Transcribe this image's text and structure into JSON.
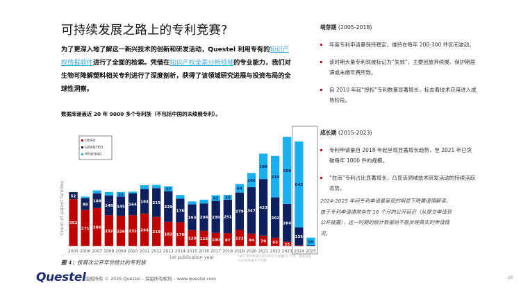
{
  "page": {
    "title": "可持续发展之路上的专利竞赛?",
    "intro": {
      "part1": "为了更深入地了解这一新兴技术的创新和研发活动，Questel 利用专有的",
      "link1": "知识产权情报软件",
      "part2": "进行了全面的检索。凭借在",
      "link2": "知识产权全景分析领域",
      "part3": "的专业能力，我们对生物可降解塑料相关专利进行了深度剖析，获得了该领域研究进展与投资布局的全球性洞察。"
    },
    "chart_caption": "数据库涵盖近 20 年 9000 多个专利族（不包括中国的未续展专利）。",
    "figure_caption": {
      "label": "图 4：",
      "text": "按首次公开年份统计的专利族"
    },
    "footnote": "*由于专利申请从提交到公开需要18 个月，因此这些年份的数据并不完整",
    "right_column": {
      "phase1": {
        "title": "萌芽期",
        "range": "(2005-2018)",
        "bullets": [
          "年度专利申请量保持稳定，维持在每年 200-300 件区间波动。",
          "该时期大量专利现被标记为“失效”，主要因放弃续展、保护期届满或未缴年费所致。",
          "自 2010 年起“授权”专利数量显著增长，标志着技术应用进入成熟阶段。"
        ]
      },
      "phase2": {
        "title": "成长期",
        "range": "(2015-2023)",
        "bullets": [
          "专利申请量自 2018 年起呈现显著增长趋势，至 2021 年已突破每年 1000 件的规模。",
          "“在审”专利占比显著增长，凸显该领域技术研发活动的持续活跃态势。"
        ]
      },
      "note": "2024-2025 年间专利申请量呈现的明显下降需谨慎解读。由于专利申请通常存在 18 个月的公开延迟（从提交申请到公开披露），这一时期的统计数据尚不能反映真实的申请情况。"
    },
    "footer": {
      "logo": "Questel",
      "copyright": "版权所有 © 2025 Questel – 保留所有权利 – www.questel.com",
      "page_number": "10"
    }
  },
  "chart_data": {
    "type": "bar",
    "stacked": true,
    "title": "",
    "xlabel": "1st publication year",
    "ylabel": "Count of patent families",
    "ylim": [
      0,
      850
    ],
    "grid": false,
    "legend_position": "top-left",
    "categories": [
      "2005",
      "2006",
      "2007",
      "2008",
      "2009",
      "2010",
      "2011",
      "2012",
      "2013",
      "2014",
      "2015",
      "2016",
      "2017",
      "2018",
      "2019",
      "2020",
      "2021",
      "2022",
      "2023",
      "2024",
      "2025"
    ],
    "series": [
      {
        "name": "DEAD",
        "color": "#c00000",
        "values": [
          352,
          271,
          286,
          232,
          226,
          232,
          244,
          219,
          182,
          179,
          120,
          116,
          100,
          97,
          122,
          94,
          79,
          63,
          33,
          6,
          0
        ]
      },
      {
        "name": "GRANTED",
        "color": "#0d1f5c",
        "values": [
          52,
          88,
          108,
          148,
          145,
          164,
          184,
          215,
          229,
          176,
          193,
          204,
          239,
          251,
          279,
          347,
          423,
          302,
          284,
          135,
          8
        ]
      },
      {
        "name": "PENDING",
        "color": "#1ab0ef",
        "values": [
          1,
          12,
          23,
          25,
          34,
          12,
          28,
          24,
          37,
          28,
          22,
          28,
          42,
          35,
          64,
          106,
          190,
          310,
          500,
          642,
          56
        ]
      }
    ],
    "highlighted_categories": [
      "2024",
      "2025"
    ]
  }
}
